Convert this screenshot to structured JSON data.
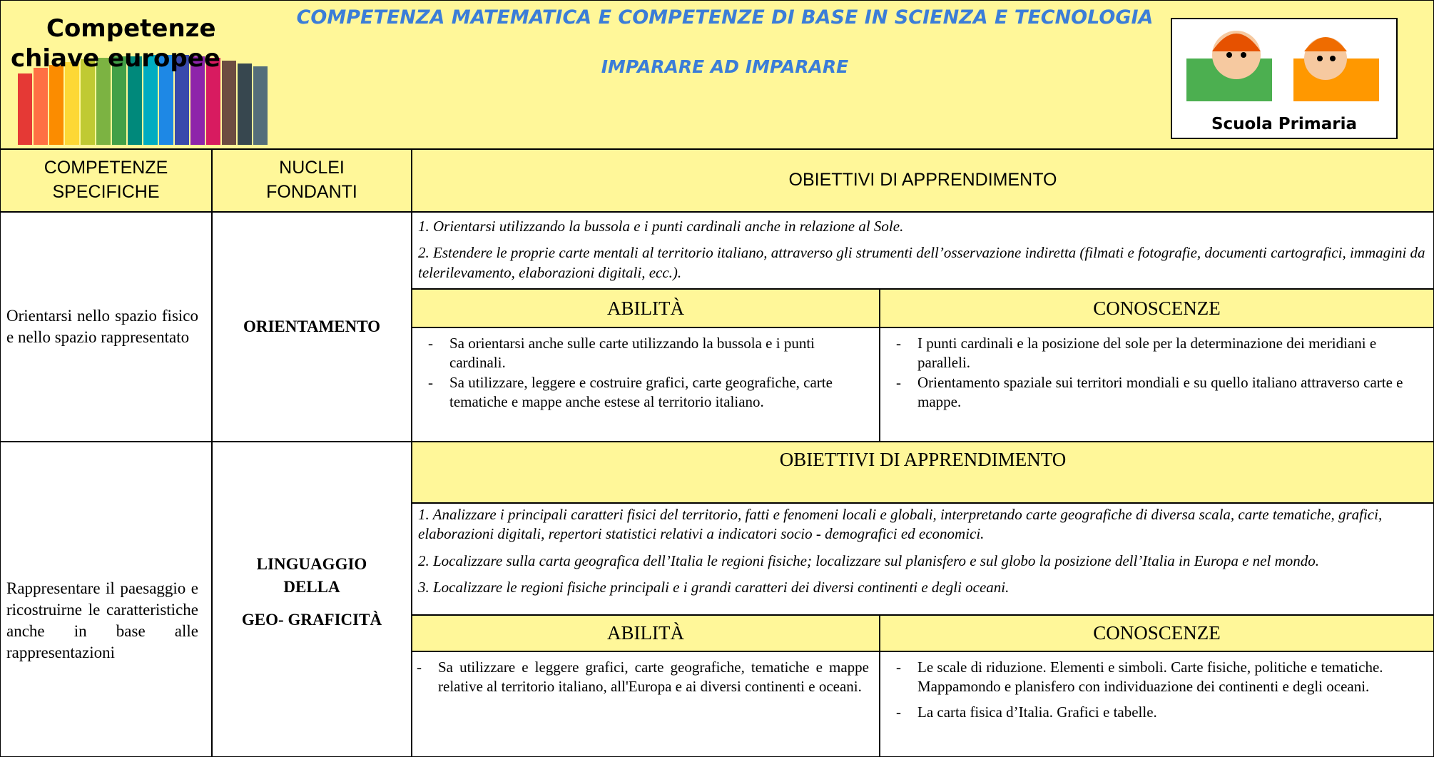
{
  "header": {
    "logo_text": [
      "Competenze",
      "chiave europee"
    ],
    "title": "COMPETENZA MATEMATICA E COMPETENZE DI BASE IN SCIENZA E TECNOLOGIA",
    "subtitle": "IMPARARE AD IMPARARE",
    "badge": "Scuola Primaria"
  },
  "column_headers": [
    "COMPETENZE SPECIFICHE",
    "NUCLEI FONDANTI",
    "OBIETTIVI DI APPRENDIMENTO"
  ],
  "rows": [
    {
      "competenza": "Orientarsi nello spazio fisico e nello spazio rappresentato",
      "nucleo": [
        "ORIENTAMENTO"
      ],
      "objectives": [
        "1. Orientarsi utilizzando la bussola e i punti cardinali anche in relazione al Sole.",
        "2. Estendere le proprie carte mentali al territorio italiano, attraverso gli strumenti dell’osservazione indiretta (filmati e fotografie, documenti cartografici, immagini da telerilevamento, elaborazioni digitali, ecc.)."
      ],
      "abilita_header": "ABILITÀ",
      "conoscenze_header": "CONOSCENZE",
      "abilita": [
        "Sa orientarsi anche sulle carte  utilizzando la bussola e i punti cardinali.",
        "Sa utilizzare, leggere e costruire grafici, carte geografiche, carte tematiche e mappe anche estese al territorio italiano."
      ],
      "conoscenze": [
        "I punti cardinali e la posizione del sole per la determinazione dei meridiani e paralleli.",
        "Orientamento spaziale sui territori mondiali e su quello italiano attraverso carte e mappe."
      ]
    },
    {
      "competenza": "Rappresentare il paesaggio e ricostruirne le caratteristiche anche in base alle rappresentazioni",
      "nucleo": [
        "LINGUAGGIO",
        "DELLA",
        "GEO- GRAFICITÀ"
      ],
      "objectives_header": "OBIETTIVI DI APPRENDIMENTO",
      "objectives": [
        "1. Analizzare i principali caratteri fisici del territorio, fatti e fenomeni locali e globali, interpretando carte geografiche di diversa scala, carte tematiche, grafici, elaborazioni digitali, repertori statistici relativi a indicatori socio - demografici ed economici.",
        "2. Localizzare sulla carta geografica dell’Italia le regioni fisiche; localizzare sul planisfero e sul globo la posizione dell’Italia in Europa e nel mondo.",
        "3. Localizzare le regioni fisiche principali e i grandi caratteri dei diversi continenti e degli oceani."
      ],
      "abilita_header": "ABILITÀ",
      "conoscenze_header": "CONOSCENZE",
      "abilita": [
        "Sa utilizzare e leggere grafici, carte geografiche, tematiche e mappe relative al territorio italiano, all'Europa e ai diversi continenti e oceani."
      ],
      "conoscenze": [
        "Le scale di riduzione. Elementi e simboli. Carte fisiche, politiche e tematiche.  Mappamondo e planisfero con individuazione dei continenti e degli oceani.",
        "La carta fisica d’Italia. Grafici e tabelle."
      ]
    }
  ]
}
